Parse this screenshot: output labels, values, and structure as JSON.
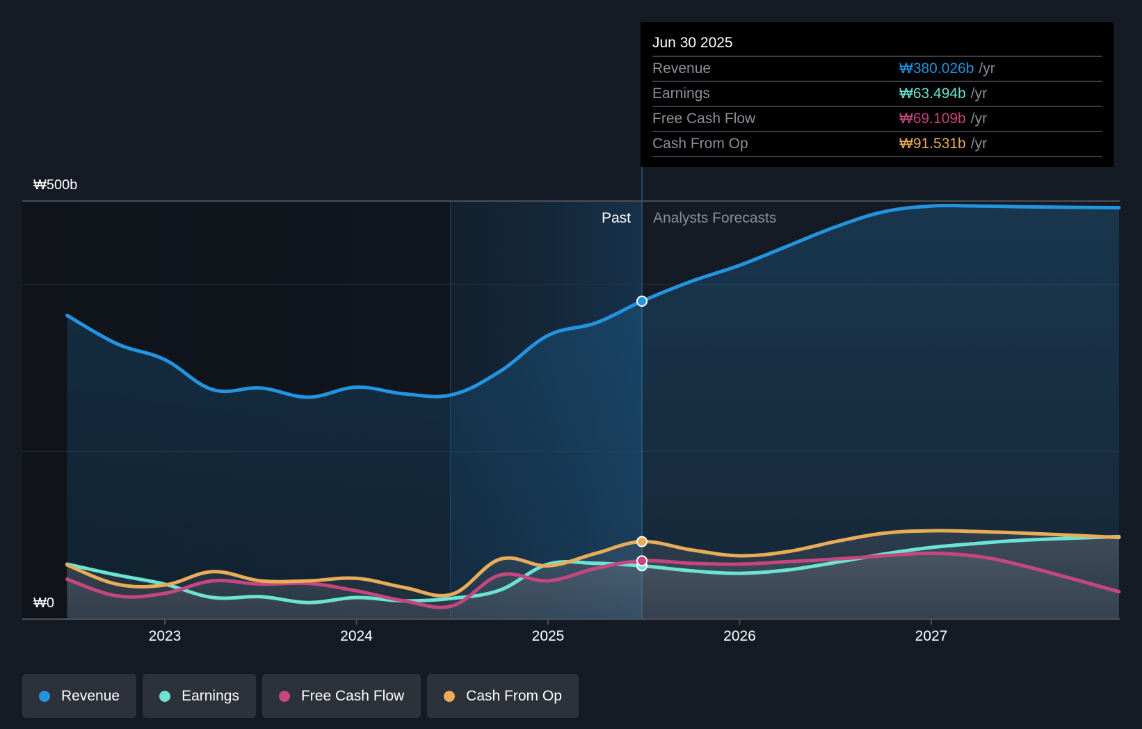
{
  "tooltip": {
    "date": "Jun 30 2025",
    "rows": [
      {
        "label": "Revenue",
        "value": "₩380.026b",
        "unit": "/yr",
        "color": "#2394df"
      },
      {
        "label": "Earnings",
        "value": "₩63.494b",
        "unit": "/yr",
        "color": "#6ce4d3"
      },
      {
        "label": "Free Cash Flow",
        "value": "₩69.109b",
        "unit": "/yr",
        "color": "#c6467f"
      },
      {
        "label": "Cash From Op",
        "value": "₩91.531b",
        "unit": "/yr",
        "color": "#e9ad5a"
      }
    ]
  },
  "legend": [
    {
      "label": "Revenue",
      "color": "#2394df"
    },
    {
      "label": "Earnings",
      "color": "#6ce4d3"
    },
    {
      "label": "Free Cash Flow",
      "color": "#c6467f"
    },
    {
      "label": "Cash From Op",
      "color": "#e9ad5a"
    }
  ],
  "chart_data": {
    "type": "line",
    "title": "",
    "xlabel": "",
    "ylabel": "",
    "y_tick_labels": [
      "₩0",
      "₩500b"
    ],
    "ylim": [
      0,
      500
    ],
    "xlim": [
      2022.49,
      2027.98
    ],
    "x_ticks": [
      2023,
      2024,
      2025,
      2026,
      2027
    ],
    "x_tick_labels": [
      "2023",
      "2024",
      "2025",
      "2026",
      "2027"
    ],
    "gridlines_y": [
      200,
      400,
      500
    ],
    "grid": true,
    "legend_position": "bottom-left",
    "past_label": "Past",
    "forecast_label": "Analysts Forecasts",
    "divider_x": 2025.49,
    "highlight_start_x": 2024.49,
    "series": [
      {
        "name": "Revenue",
        "color": "#2394df",
        "x": [
          2022.49,
          2022.75,
          2023.0,
          2023.25,
          2023.5,
          2023.75,
          2024.0,
          2024.25,
          2024.5,
          2024.75,
          2025.0,
          2025.25,
          2025.49,
          2025.75,
          2026.0,
          2026.25,
          2026.5,
          2026.75,
          2027.0,
          2027.25,
          2027.5,
          2027.98
        ],
        "y": [
          363,
          329,
          310,
          274,
          276,
          265,
          277,
          269,
          268,
          296,
          339,
          354,
          380,
          404,
          423,
          446,
          469,
          487,
          494,
          494,
          493,
          492
        ]
      },
      {
        "name": "Earnings",
        "color": "#6ce4d3",
        "x": [
          2022.49,
          2022.75,
          2023.0,
          2023.25,
          2023.5,
          2023.75,
          2024.0,
          2024.25,
          2024.5,
          2024.75,
          2025.0,
          2025.25,
          2025.49,
          2025.75,
          2026.0,
          2026.25,
          2026.5,
          2026.75,
          2027.0,
          2027.25,
          2027.5,
          2027.98
        ],
        "y": [
          65,
          52,
          41,
          25,
          26,
          19,
          25,
          21,
          24,
          34,
          65,
          66,
          63,
          57,
          54,
          58,
          67,
          77,
          85,
          90,
          94,
          98
        ]
      },
      {
        "name": "Free Cash Flow",
        "color": "#c6467f",
        "x": [
          2022.49,
          2022.75,
          2023.0,
          2023.25,
          2023.5,
          2023.75,
          2024.0,
          2024.25,
          2024.5,
          2024.75,
          2025.0,
          2025.25,
          2025.49,
          2025.75,
          2026.0,
          2026.25,
          2026.5,
          2026.75,
          2027.0,
          2027.25,
          2027.5,
          2027.98
        ],
        "y": [
          47,
          27,
          30,
          45,
          41,
          42,
          33,
          21,
          15,
          52,
          45,
          60,
          69,
          66,
          65,
          68,
          71,
          75,
          78,
          74,
          62,
          32
        ]
      },
      {
        "name": "Cash From Op",
        "color": "#e9ad5a",
        "x": [
          2022.49,
          2022.75,
          2023.0,
          2023.25,
          2023.5,
          2023.75,
          2024.0,
          2024.25,
          2024.5,
          2024.75,
          2025.0,
          2025.25,
          2025.49,
          2025.75,
          2026.0,
          2026.25,
          2026.5,
          2026.75,
          2027.0,
          2027.25,
          2027.5,
          2027.98
        ],
        "y": [
          64,
          41,
          40,
          56,
          45,
          45,
          48,
          37,
          29,
          71,
          63,
          78,
          92,
          82,
          75,
          80,
          92,
          102,
          105,
          104,
          102,
          97
        ]
      }
    ],
    "markers_at_x": 2025.49
  }
}
